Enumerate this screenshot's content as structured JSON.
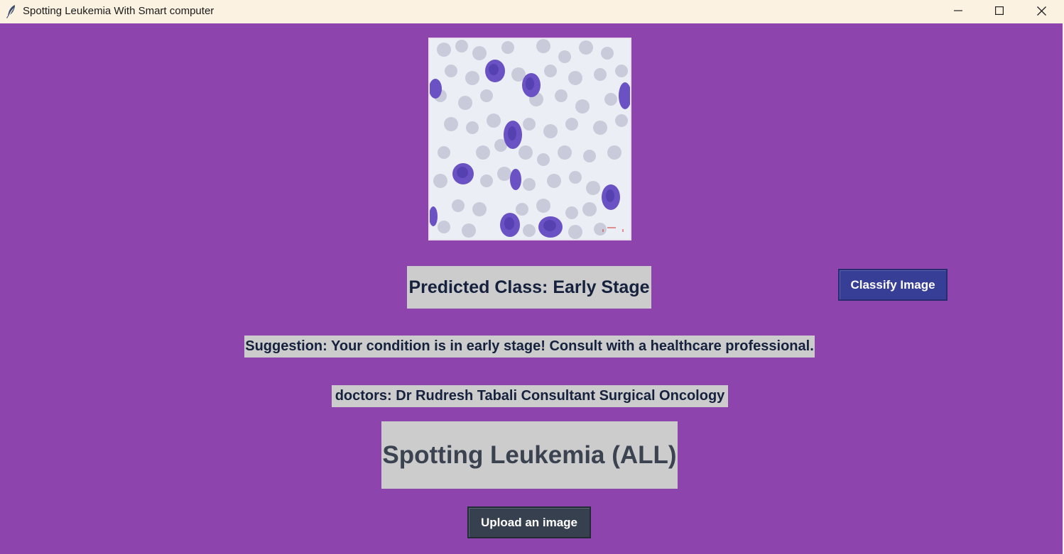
{
  "window": {
    "title": "Spotting Leukemia With Smart computer",
    "background_color": "#8e44ad"
  },
  "titlebar_icons": {
    "app": "feather-icon",
    "minimize": "minimize-icon",
    "maximize": "maximize-icon",
    "close": "close-icon"
  },
  "image_preview": {
    "description_icon": "blood-smear-image"
  },
  "result": {
    "predicted": "Predicted Class: Early Stage",
    "suggestion": "Suggestion: Your condition is in early stage! Consult with a healthcare professional.",
    "doctors": "doctors: Dr Rudresh Tabali Consultant Surgical Oncology"
  },
  "heading": {
    "title": "Spotting Leukemia (ALL)"
  },
  "buttons": {
    "classify_label": "Classify Image",
    "classify_color": "#363e96",
    "upload_label": "Upload an image",
    "upload_color": "#36404e"
  }
}
